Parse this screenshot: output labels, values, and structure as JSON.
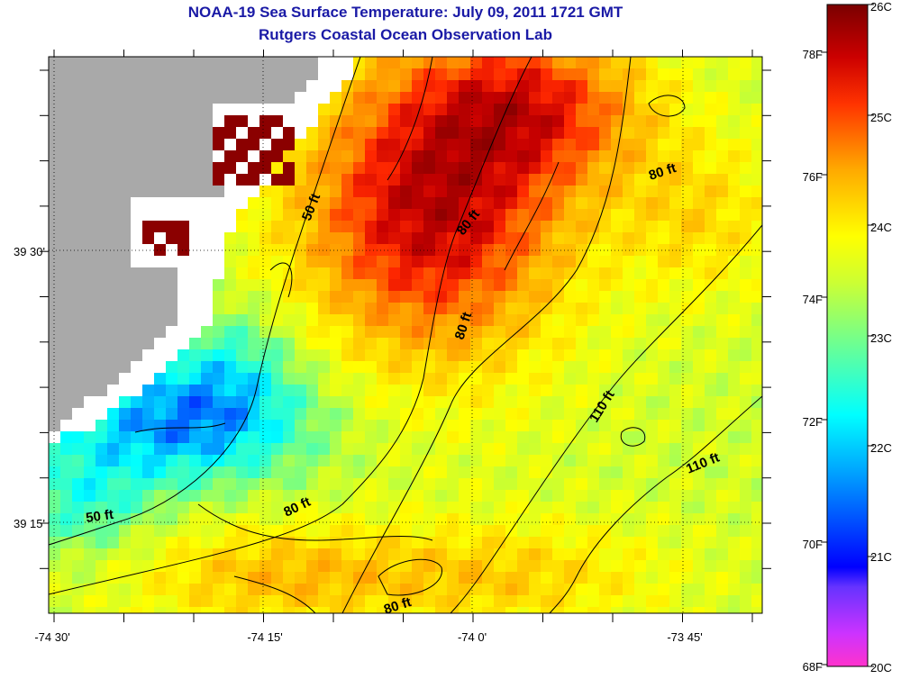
{
  "header": {
    "title": "NOAA-19 Sea Surface Temperature:  July 09, 2011 1721 GMT",
    "subtitle": "Rutgers Coastal Ocean Observation Lab"
  },
  "map": {
    "lon_labels": [
      "-74 30'",
      "-74 15'",
      "-74 0'",
      "-73 45'"
    ],
    "lat_labels": [
      "39 30'",
      "39 15'"
    ],
    "contour_labels": [
      "50 ft",
      "50 ft",
      "80 ft",
      "80 ft",
      "80 ft",
      "80 ft",
      "80 ft",
      "110 ft",
      "110 ft"
    ]
  },
  "colorbar": {
    "celsius_labels": [
      "26C",
      "25C",
      "24C",
      "23C",
      "22C",
      "21C",
      "20C"
    ],
    "fahrenheit_labels": [
      "78F",
      "76F",
      "74F",
      "72F",
      "70F",
      "68F"
    ],
    "colors": [
      "#ff33cc",
      "#9933ff",
      "#0000ff",
      "#0099ff",
      "#00ffff",
      "#66ff99",
      "#ccff33",
      "#ffff00",
      "#ffcc00",
      "#ff9900",
      "#ff3300",
      "#cc0000",
      "#8b0000"
    ]
  },
  "colors": {
    "land": "#a9a9a9",
    "title": "#1a1aa6",
    "nodata": "#ffffff",
    "hot": "#8b0000"
  }
}
